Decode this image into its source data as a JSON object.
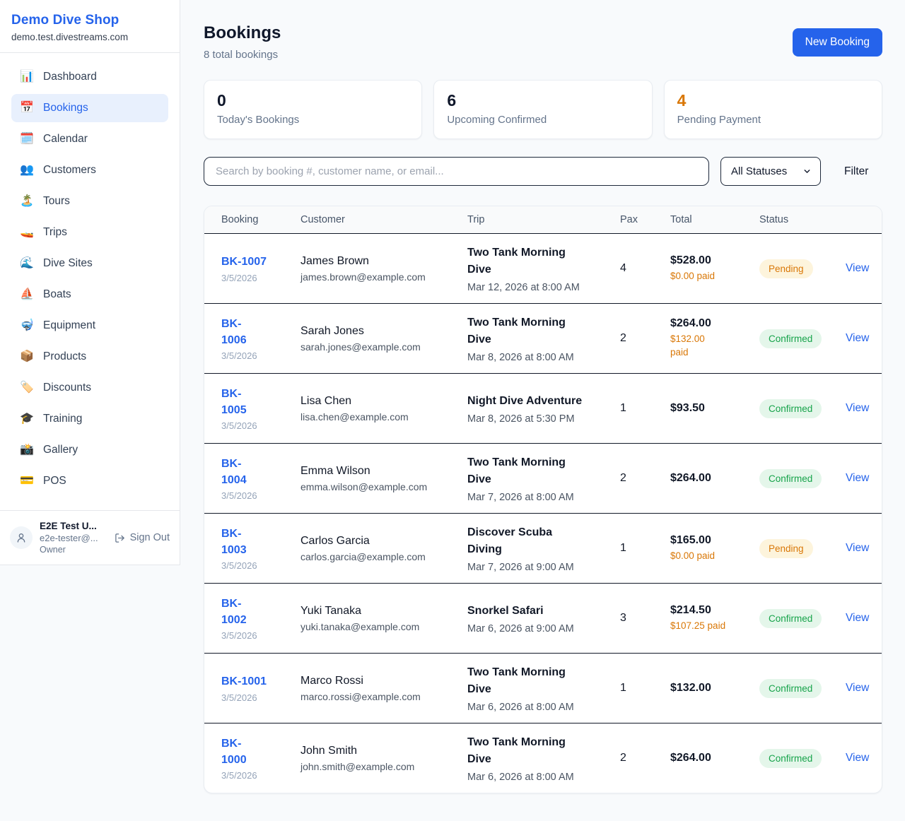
{
  "sidebar": {
    "shop_name": "Demo Dive Shop",
    "shop_domain": "demo.test.divestreams.com",
    "items": [
      {
        "icon": "bar-chart-icon",
        "glyph": "📊",
        "label": "Dashboard",
        "active": false
      },
      {
        "icon": "calendar-date-icon",
        "glyph": "📅",
        "label": "Bookings",
        "active": true
      },
      {
        "icon": "spiral-calendar-icon",
        "glyph": "🗓️",
        "label": "Calendar",
        "active": false
      },
      {
        "icon": "people-icon",
        "glyph": "👥",
        "label": "Customers",
        "active": false
      },
      {
        "icon": "island-icon",
        "glyph": "🏝️",
        "label": "Tours",
        "active": false
      },
      {
        "icon": "speedboat-icon",
        "glyph": "🚤",
        "label": "Trips",
        "active": false
      },
      {
        "icon": "wave-icon",
        "glyph": "🌊",
        "label": "Dive Sites",
        "active": false
      },
      {
        "icon": "sailboat-icon",
        "glyph": "⛵",
        "label": "Boats",
        "active": false
      },
      {
        "icon": "diving-mask-icon",
        "glyph": "🤿",
        "label": "Equipment",
        "active": false
      },
      {
        "icon": "package-icon",
        "glyph": "📦",
        "label": "Products",
        "active": false
      },
      {
        "icon": "tag-icon",
        "glyph": "🏷️",
        "label": "Discounts",
        "active": false
      },
      {
        "icon": "graduation-cap-icon",
        "glyph": "🎓",
        "label": "Training",
        "active": false
      },
      {
        "icon": "camera-icon",
        "glyph": "📸",
        "label": "Gallery",
        "active": false
      },
      {
        "icon": "credit-card-icon",
        "glyph": "💳",
        "label": "POS",
        "active": false
      }
    ],
    "user": {
      "name": "E2E Test U...",
      "email": "e2e-tester@...",
      "role": "Owner",
      "signout_label": "Sign Out"
    }
  },
  "header": {
    "title": "Bookings",
    "subtitle": "8 total bookings",
    "new_booking_label": "New Booking"
  },
  "stats": [
    {
      "value": "0",
      "label": "Today's Bookings",
      "accent": "dark"
    },
    {
      "value": "6",
      "label": "Upcoming Confirmed",
      "accent": "dark"
    },
    {
      "value": "4",
      "label": "Pending Payment",
      "accent": "orange"
    }
  ],
  "filters": {
    "search_placeholder": "Search by booking #, customer name, or email...",
    "status_selected": "All Statuses",
    "filter_label": "Filter"
  },
  "table": {
    "columns": [
      "Booking",
      "Customer",
      "Trip",
      "Pax",
      "Total",
      "Status"
    ],
    "view_label": "View",
    "rows": [
      {
        "id": "BK-1007",
        "date": "3/5/2026",
        "customer": "James Brown",
        "email": "james.brown@example.com",
        "trip": "Two Tank Morning\nDive",
        "trip_time": "Mar 12, 2026 at 8:00 AM",
        "pax": "4",
        "total": "$528.00",
        "paid": "$0.00 paid",
        "status": "Pending"
      },
      {
        "id": "BK-\n1006",
        "date": "3/5/2026",
        "customer": "Sarah Jones",
        "email": "sarah.jones@example.com",
        "trip": "Two Tank Morning\nDive",
        "trip_time": "Mar 8, 2026 at 8:00 AM",
        "pax": "2",
        "total": "$264.00",
        "paid": "$132.00\npaid",
        "status": "Confirmed"
      },
      {
        "id": "BK-\n1005",
        "date": "3/5/2026",
        "customer": "Lisa Chen",
        "email": "lisa.chen@example.com",
        "trip": "Night Dive Adventure",
        "trip_time": "Mar 8, 2026 at 5:30 PM",
        "pax": "1",
        "total": "$93.50",
        "paid": "",
        "status": "Confirmed"
      },
      {
        "id": "BK-\n1004",
        "date": "3/5/2026",
        "customer": "Emma Wilson",
        "email": "emma.wilson@example.com",
        "trip": "Two Tank Morning\nDive",
        "trip_time": "Mar 7, 2026 at 8:00 AM",
        "pax": "2",
        "total": "$264.00",
        "paid": "",
        "status": "Confirmed"
      },
      {
        "id": "BK-\n1003",
        "date": "3/5/2026",
        "customer": "Carlos Garcia",
        "email": "carlos.garcia@example.com",
        "trip": "Discover Scuba\nDiving",
        "trip_time": "Mar 7, 2026 at 9:00 AM",
        "pax": "1",
        "total": "$165.00",
        "paid": "$0.00 paid",
        "status": "Pending"
      },
      {
        "id": "BK-\n1002",
        "date": "3/5/2026",
        "customer": "Yuki Tanaka",
        "email": "yuki.tanaka@example.com",
        "trip": "Snorkel Safari",
        "trip_time": "Mar 6, 2026 at 9:00 AM",
        "pax": "3",
        "total": "$214.50",
        "paid": "$107.25 paid",
        "status": "Confirmed"
      },
      {
        "id": "BK-1001",
        "date": "3/5/2026",
        "customer": "Marco Rossi",
        "email": "marco.rossi@example.com",
        "trip": "Two Tank Morning\nDive",
        "trip_time": "Mar 6, 2026 at 8:00 AM",
        "pax": "1",
        "total": "$132.00",
        "paid": "",
        "status": "Confirmed"
      },
      {
        "id": "BK-\n1000",
        "date": "3/5/2026",
        "customer": "John Smith",
        "email": "john.smith@example.com",
        "trip": "Two Tank Morning\nDive",
        "trip_time": "Mar 6, 2026 at 8:00 AM",
        "pax": "2",
        "total": "$264.00",
        "paid": "",
        "status": "Confirmed"
      }
    ]
  },
  "colors": {
    "accent": "#2563eb",
    "pending_text": "#d97706",
    "pending_bg": "#fdf4dc",
    "confirmed_text": "#16a34a",
    "confirmed_bg": "#e4f6ea"
  }
}
